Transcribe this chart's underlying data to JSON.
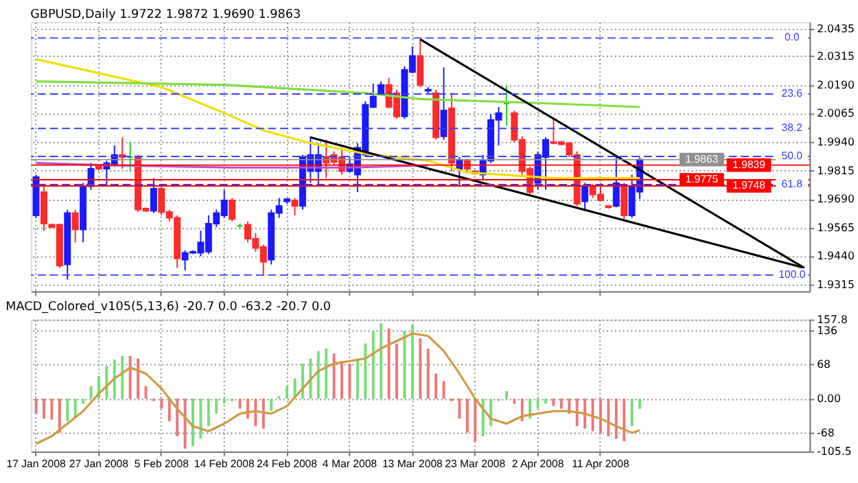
{
  "chart_data": [
    {
      "type": "candlestick",
      "title": "GBPUSD,Daily  1.9722 1.9872 1.9690 1.9863",
      "categories": [
        null,
        null,
        null,
        null,
        null,
        null,
        null,
        null,
        null,
        null,
        null,
        null,
        null,
        null,
        null,
        null,
        null,
        null,
        null,
        null,
        null,
        null,
        null,
        null,
        null,
        null,
        null,
        null,
        null,
        null,
        null,
        null,
        null,
        null,
        null,
        null,
        null,
        null,
        null,
        null,
        null,
        null,
        null,
        null,
        null,
        null,
        null,
        null,
        null,
        null,
        null,
        null,
        null,
        null,
        null,
        null,
        null,
        null,
        null,
        null,
        null,
        null,
        null,
        null,
        null,
        null,
        null,
        null,
        null,
        null,
        null,
        null,
        null,
        null,
        null,
        null,
        null,
        null,
        null,
        null,
        null,
        null,
        null,
        null,
        null,
        null,
        null,
        null,
        null,
        null,
        null,
        null,
        null,
        null,
        null,
        null,
        null,
        null,
        null
      ],
      "ohlc": [
        [
          1.9619,
          1.9797,
          1.9608,
          1.9787
        ],
        [
          1.9721,
          1.9746,
          1.9552,
          1.9583
        ],
        [
          1.9578,
          1.9583,
          1.9563,
          1.9568
        ],
        [
          1.9578,
          1.9583,
          1.9389,
          1.9399
        ],
        [
          1.9404,
          1.9644,
          1.9338,
          1.9629
        ],
        [
          1.9629,
          1.9644,
          1.9501,
          1.9557
        ],
        [
          1.9557,
          1.9761,
          1.9501,
          1.9746
        ],
        [
          1.9746,
          1.9848,
          1.9731,
          1.9823
        ],
        [
          1.9833,
          1.9838,
          1.9817,
          1.9823
        ],
        [
          1.9823,
          1.9858,
          1.9746,
          1.9848
        ],
        [
          1.9838,
          1.9925,
          1.9833,
          1.9884
        ],
        [
          1.9884,
          1.996,
          1.9823,
          1.9874
        ],
        [
          1.9874,
          1.994,
          1.9812,
          1.9874
        ],
        [
          1.9874,
          1.9884,
          1.9634,
          1.9644
        ],
        [
          1.9649,
          1.9654,
          1.9634,
          1.9639
        ],
        [
          1.9639,
          1.9782,
          1.9629,
          1.9736
        ],
        [
          1.9736,
          1.9756,
          1.9619,
          1.9634
        ],
        [
          1.9634,
          1.9644,
          1.9593,
          1.9608
        ],
        [
          1.9608,
          1.9619,
          1.9389,
          1.943
        ],
        [
          1.9425,
          1.9466,
          1.9379,
          1.9455
        ],
        [
          1.9455,
          1.9466,
          1.945,
          1.946
        ],
        [
          1.9455,
          1.9552,
          1.944,
          1.9501
        ],
        [
          1.946,
          1.9619,
          1.945,
          1.9583
        ],
        [
          1.9583,
          1.9644,
          1.9568,
          1.9629
        ],
        [
          1.9619,
          1.9731,
          1.9608,
          1.9685
        ],
        [
          1.9685,
          1.9695,
          1.9593,
          1.9603
        ],
        [
          1.9573,
          1.9583,
          1.9563,
          1.9573
        ],
        [
          1.9578,
          1.9593,
          1.9501,
          1.9517
        ],
        [
          1.9517,
          1.9542,
          1.946,
          1.9476
        ],
        [
          1.9481,
          1.9491,
          1.9358,
          1.9415
        ],
        [
          1.9425,
          1.9644,
          1.9404,
          1.9629
        ],
        [
          1.9629,
          1.9695,
          1.9608,
          1.966
        ],
        [
          1.968,
          1.9695,
          1.967,
          1.969
        ],
        [
          1.9685,
          1.9695,
          1.9619,
          1.966
        ],
        [
          1.966,
          1.9884,
          1.9644,
          1.9874
        ],
        [
          1.9812,
          1.9965,
          1.9761,
          1.9884
        ],
        [
          1.9812,
          1.9935,
          1.9756,
          1.9884
        ],
        [
          1.9874,
          1.995,
          1.9782,
          1.9848
        ],
        [
          1.9884,
          1.9899,
          1.9838,
          1.9853
        ],
        [
          1.9874,
          1.9915,
          1.9797,
          1.9812
        ],
        [
          1.9812,
          1.9874,
          1.9807,
          1.9843
        ],
        [
          1.9797,
          1.9935,
          1.9721,
          1.9915
        ],
        [
          1.9884,
          2.0118,
          1.9874,
          2.0103
        ],
        [
          2.0093,
          2.0195,
          2.0088,
          2.0139
        ],
        [
          2.0154,
          2.0205,
          2.0144,
          2.019
        ],
        [
          2.019,
          2.0221,
          2.0088,
          2.0093
        ],
        [
          2.0154,
          2.0169,
          2.0042,
          2.0052
        ],
        [
          2.0052,
          2.0271,
          2.0042,
          2.0256
        ],
        [
          2.0246,
          2.0358,
          2.0241,
          2.0317
        ],
        [
          2.0317,
          2.0389,
          2.018,
          2.019
        ],
        [
          2.0164,
          2.018,
          2.0154,
          2.0169
        ],
        [
          2.0154,
          2.0169,
          1.995,
          1.996
        ],
        [
          1.9965,
          2.0266,
          1.995,
          2.0078
        ],
        [
          2.0088,
          2.0154,
          1.9812,
          1.9848
        ],
        [
          1.9823,
          1.9874,
          1.9746,
          1.9863
        ],
        [
          1.9858,
          1.9868,
          1.9812,
          1.9823
        ],
        [
          1.9812,
          1.9817,
          1.9797,
          1.9802
        ],
        [
          1.9797,
          1.9884,
          1.9772,
          1.9858
        ],
        [
          1.9858,
          2.0062,
          1.9848,
          2.0037
        ],
        [
          2.0037,
          2.0093,
          1.9925,
          2.0067
        ],
        [
          2.0108,
          2.019,
          2.0011,
          2.0108
        ],
        [
          2.0067,
          2.0078,
          1.994,
          1.995
        ],
        [
          1.995,
          1.9965,
          1.9797,
          1.9812
        ],
        [
          1.9823,
          1.9833,
          1.971,
          1.9721
        ],
        [
          1.9761,
          1.9899,
          1.9731,
          1.9884
        ],
        [
          1.9874,
          1.996,
          1.9731,
          1.995
        ],
        [
          1.994,
          2.0042,
          1.993,
          1.9935
        ],
        [
          1.994,
          1.9945,
          1.9925,
          1.993
        ],
        [
          1.9935,
          1.994,
          1.9874,
          1.9884
        ],
        [
          1.9884,
          1.9899,
          1.966,
          1.967
        ],
        [
          1.968,
          1.9761,
          1.9644,
          1.9746
        ],
        [
          1.9746,
          1.9756,
          1.9695,
          1.971
        ],
        [
          1.971,
          1.9761,
          1.968,
          1.9685
        ],
        [
          1.966,
          1.9665,
          1.9649,
          1.9654
        ],
        [
          1.966,
          1.9874,
          1.9654,
          1.9761
        ],
        [
          1.9746,
          1.9761,
          1.9603,
          1.9619
        ],
        [
          1.9619,
          1.9797,
          1.9608,
          1.9746
        ],
        [
          1.9722,
          1.9872,
          1.969,
          1.9863
        ],
        null,
        null,
        null,
        null,
        null,
        null,
        null,
        null,
        null,
        null,
        null,
        null,
        null,
        null,
        null,
        null,
        null,
        null,
        null,
        null,
        null
      ],
      "colors": [
        "#1a1aff",
        "#ff2a2a",
        "#ff2a2a",
        "#ff2a2a",
        "#1a1aff",
        "#ff2a2a",
        "#1a1aff",
        "#1a1aff",
        "#ff2a2a",
        "#1a1aff",
        "#1a1aff",
        "#ff2a2a",
        "#22cc22",
        "#ff2a2a",
        "#ff2a2a",
        "#1a1aff",
        "#ff2a2a",
        "#ff2a2a",
        "#ff2a2a",
        "#1a1aff",
        "#1a1aff",
        "#1a1aff",
        "#1a1aff",
        "#1a1aff",
        "#1a1aff",
        "#ff2a2a",
        "#22cc22",
        "#ff2a2a",
        "#ff2a2a",
        "#ff2a2a",
        "#1a1aff",
        "#1a1aff",
        "#1a1aff",
        "#ff2a2a",
        "#1a1aff",
        "#1a1aff",
        "#1a1aff",
        "#ff2a2a",
        "#ff2a2a",
        "#ff2a2a",
        "#1a1aff",
        "#1a1aff",
        "#1a1aff",
        "#1a1aff",
        "#1a1aff",
        "#ff2a2a",
        "#ff2a2a",
        "#1a1aff",
        "#1a1aff",
        "#ff2a2a",
        "#1a1aff",
        "#ff2a2a",
        "#1a1aff",
        "#ff2a2a",
        "#1a1aff",
        "#ff2a2a",
        "#ff2a2a",
        "#1a1aff",
        "#1a1aff",
        "#1a1aff",
        "#22cc22",
        "#ff2a2a",
        "#ff2a2a",
        "#ff2a2a",
        "#1a1aff",
        "#1a1aff",
        "#ff2a2a",
        "#ff2a2a",
        "#ff2a2a",
        "#ff2a2a",
        "#1a1aff",
        "#ff2a2a",
        "#ff2a2a",
        "#ff2a2a",
        "#1a1aff",
        "#ff2a2a",
        "#1a1aff",
        "#1a1aff",
        null,
        null,
        null,
        null,
        null,
        null,
        null,
        null,
        null,
        null,
        null,
        null,
        null,
        null,
        null,
        null,
        null,
        null,
        null,
        null,
        null
      ],
      "series": [
        {
          "type": "line",
          "color": "#f0e000",
          "values": [
            2.0302,
            null,
            null,
            null,
            null,
            null,
            null,
            null,
            null,
            null,
            null,
            null,
            null,
            null,
            null,
            null,
            2.018,
            null,
            null,
            null,
            null,
            null,
            null,
            null,
            2.0067,
            null,
            null,
            null,
            null,
            1.9991,
            null,
            null,
            null,
            null,
            null,
            1.9935,
            null,
            null,
            null,
            null,
            null,
            null,
            1.9889,
            null,
            null,
            null,
            null,
            null,
            null,
            null,
            1.9858,
            null,
            null,
            null,
            null,
            1.9807,
            null,
            null,
            null,
            null,
            null,
            null,
            null,
            null,
            null,
            null,
            1.9782,
            null,
            null,
            null,
            null,
            null,
            null,
            null,
            null,
            null,
            null,
            1.9782,
            null,
            null,
            null,
            null,
            null,
            null,
            null,
            null,
            null,
            null,
            null,
            null,
            null,
            null,
            null,
            null,
            null,
            null,
            null,
            null,
            null
          ]
        },
        {
          "type": "line",
          "color": "#80e040",
          "values": [
            2.0205,
            null,
            null,
            null,
            null,
            null,
            null,
            null,
            null,
            null,
            null,
            null,
            null,
            null,
            null,
            null,
            null,
            null,
            null,
            null,
            null,
            null,
            null,
            null,
            2.019,
            null,
            null,
            null,
            null,
            null,
            null,
            null,
            null,
            null,
            null,
            null,
            null,
            null,
            null,
            null,
            null,
            null,
            2.0154,
            null,
            null,
            null,
            null,
            null,
            null,
            2.0128,
            null,
            null,
            null,
            null,
            null,
            null,
            null,
            null,
            null,
            null,
            null,
            null,
            null,
            null,
            null,
            null,
            2.0108,
            null,
            null,
            null,
            null,
            null,
            null,
            null,
            null,
            null,
            null,
            2.0093,
            null,
            null,
            null,
            null,
            null,
            null,
            null,
            null,
            null,
            null,
            null,
            null,
            null,
            null,
            null,
            null,
            null,
            null,
            null,
            null,
            null
          ]
        },
        {
          "type": "line",
          "color": "#c050c0",
          "values": [
            1.9848,
            null,
            null,
            null,
            null,
            null,
            null,
            null,
            null,
            null,
            1.9838,
            null,
            null,
            null,
            null,
            null,
            null,
            null,
            null,
            null,
            null,
            null,
            null,
            null,
            null,
            1.9828,
            null,
            null,
            null,
            null,
            null,
            null,
            null,
            null,
            null,
            null,
            null,
            null,
            null,
            null,
            1.9828,
            null,
            null,
            null,
            null,
            null,
            null,
            null,
            null,
            null,
            1.9838,
            null,
            null,
            null,
            null,
            null,
            null,
            null,
            null,
            null,
            null,
            null,
            null,
            null,
            null,
            null,
            null,
            null,
            null,
            null,
            null,
            null,
            null,
            null,
            null,
            null,
            null,
            null,
            null,
            null,
            null,
            null,
            null,
            null,
            null,
            null,
            null,
            null,
            null,
            null,
            null,
            null,
            null,
            null,
            null,
            null,
            null,
            null,
            null
          ]
        },
        {
          "type": "line",
          "color": "#000000",
          "values": [
            null,
            null,
            null,
            null,
            null,
            null,
            null,
            null,
            null,
            null,
            null,
            null,
            null,
            null,
            null,
            null,
            null,
            null,
            null,
            null,
            null,
            null,
            null,
            null,
            null,
            null,
            null,
            null,
            null,
            null,
            null,
            null,
            null,
            null,
            null,
            null,
            null,
            null,
            null,
            null,
            null,
            null,
            null,
            null,
            null,
            null,
            null,
            null,
            null,
            2.0389,
            null,
            null,
            null,
            null,
            null,
            null,
            null,
            null,
            null,
            null,
            null,
            null,
            null,
            null,
            null,
            null,
            null,
            null,
            null,
            null,
            null,
            null,
            null,
            null,
            null,
            null,
            null,
            null,
            null,
            null,
            null,
            null,
            null,
            null,
            null,
            null,
            null,
            null,
            null,
            null,
            null,
            null,
            null,
            null,
            null,
            null,
            null,
            null,
            1.9389
          ]
        },
        {
          "type": "line",
          "color": "#000000",
          "values": [
            null,
            null,
            null,
            null,
            null,
            null,
            null,
            null,
            null,
            null,
            null,
            null,
            null,
            null,
            null,
            null,
            null,
            null,
            null,
            null,
            null,
            null,
            null,
            null,
            null,
            null,
            null,
            null,
            null,
            null,
            null,
            null,
            null,
            null,
            null,
            1.996,
            null,
            null,
            null,
            null,
            null,
            null,
            null,
            null,
            null,
            null,
            null,
            null,
            null,
            null,
            null,
            null,
            null,
            null,
            null,
            null,
            null,
            null,
            null,
            null,
            null,
            null,
            null,
            null,
            null,
            null,
            null,
            null,
            null,
            null,
            null,
            null,
            null,
            null,
            null,
            null,
            null,
            null,
            null,
            null,
            null,
            null,
            null,
            null,
            null,
            null,
            null,
            null,
            null,
            null,
            null,
            null,
            null,
            null,
            null,
            null,
            null,
            null,
            1.9389
          ]
        }
      ],
      "ylim": [
        1.9287,
        2.0465
      ],
      "yticks": [
        2.0435,
        2.0315,
        {
          "value": 2.019,
          "label": "2.0190"
        },
        2.0065,
        {
          "value": 1.994,
          "label": "1.9940"
        },
        1.9815,
        {
          "value": 1.969,
          "label": "1.9690"
        },
        1.9565,
        {
          "value": 1.944,
          "label": "1.9440"
        },
        1.9315
      ],
      "ref_lines": [
        {
          "axis": "y",
          "value": 2.0395,
          "color": "#3a3aff",
          "line_style": "dashed"
        },
        {
          "axis": "y",
          "value": 2.015,
          "color": "#3a3aff",
          "line_style": "dashed"
        },
        {
          "axis": "y",
          "value": 1.9999,
          "color": "#3a3aff",
          "line_style": "dashed"
        },
        {
          "axis": "y",
          "value": 1.9877,
          "color": "#3a3aff",
          "line_style": "dashed"
        },
        {
          "axis": "y",
          "value": 1.9754,
          "color": "#3a3aff",
          "line_style": "dashed"
        },
        {
          "axis": "y",
          "value": 1.9358,
          "color": "#3a3aff",
          "line_style": "dashed"
        },
        {
          "axis": "y",
          "value": 1.9863,
          "label": "1.9863",
          "color": "#909090",
          "line_style": "solid"
        },
        {
          "axis": "y",
          "value": 1.9839,
          "label": "1.9839",
          "color": "#ff0000",
          "line_style": "solid"
        },
        {
          "axis": "y",
          "value": 1.9775,
          "label": "1.9775",
          "color": "#ff0000",
          "line_style": "solid"
        },
        {
          "axis": "y",
          "value": 1.9748,
          "label": "1.9748",
          "color": "#ff0000",
          "line_style": "solid"
        }
      ],
      "annotations": [
        {
          "text": "0.0",
          "y": 2.0395
        },
        {
          "text": "23.6",
          "y": 2.015
        },
        {
          "text": "38.2",
          "y": 1.9999
        },
        {
          "text": "50.0",
          "y": 1.9877
        },
        {
          "text": "61.8",
          "y": 1.9754
        },
        {
          "text": "100.0",
          "y": 1.9358
        }
      ],
      "grid": true,
      "tick_labels": "y"
    },
    {
      "type": "bar",
      "title": "MACD_Colored_v105(5,13,6) -20.7 0.0 -63.2 -20.7 0.0",
      "categories": [
        "17 Jan 2008",
        null,
        null,
        null,
        null,
        null,
        null,
        null,
        "27 Jan 2008",
        null,
        null,
        null,
        null,
        null,
        null,
        null,
        "5 Feb 2008",
        null,
        null,
        null,
        null,
        null,
        null,
        null,
        "14 Feb 2008",
        null,
        null,
        null,
        null,
        null,
        null,
        null,
        "24 Feb 2008",
        null,
        null,
        null,
        null,
        null,
        null,
        null,
        "4 Mar 2008",
        null,
        null,
        null,
        null,
        null,
        null,
        null,
        "13 Mar 2008",
        null,
        null,
        null,
        null,
        null,
        null,
        null,
        "23 Mar 2008",
        null,
        null,
        null,
        null,
        null,
        null,
        null,
        "2 Apr 2008",
        null,
        null,
        null,
        null,
        null,
        null,
        null,
        "11 Apr 2008",
        null,
        null,
        null,
        null,
        null,
        null,
        null,
        null,
        null,
        null,
        null,
        null,
        null,
        null,
        null,
        null,
        null,
        null,
        null,
        null,
        null,
        null,
        null,
        null,
        null,
        null
      ],
      "series": [
        {
          "type": "bar",
          "values": [
            -30,
            -40,
            -42,
            -68,
            -45,
            -38,
            -10,
            25,
            45,
            65,
            78,
            85,
            85,
            80,
            25,
            -5,
            -20,
            -45,
            -75,
            -100,
            -95,
            -80,
            -55,
            -30,
            -10,
            -5,
            -20,
            -40,
            -55,
            -60,
            -25,
            5,
            25,
            40,
            70,
            80,
            95,
            100,
            90,
            75,
            70,
            80,
            110,
            135,
            150,
            140,
            110,
            135,
            148,
            120,
            100,
            50,
            35,
            -5,
            -40,
            -68,
            -85,
            -75,
            -55,
            -5,
            15,
            -10,
            -45,
            -40,
            -20,
            -10,
            -15,
            -20,
            -30,
            -55,
            -60,
            -65,
            -70,
            -75,
            -80,
            -85,
            -55,
            -20.7,
            null,
            null,
            null,
            null,
            null,
            null,
            null,
            null,
            null,
            null,
            null,
            null,
            null,
            null,
            null,
            null,
            null,
            null,
            null,
            null,
            null
          ],
          "colors": [
            "#ee7777",
            "#ee7777",
            "#ee7777",
            "#ee7777",
            "#77dd77",
            "#77dd77",
            "#77dd77",
            "#77dd77",
            "#77dd77",
            "#77dd77",
            "#77dd77",
            "#77dd77",
            "#ee7777",
            "#ee7777",
            "#ee7777",
            "#ee7777",
            "#ee7777",
            "#ee7777",
            "#ee7777",
            "#ee7777",
            "#77dd77",
            "#77dd77",
            "#77dd77",
            "#77dd77",
            "#77dd77",
            "#77dd77",
            "#ee7777",
            "#ee7777",
            "#ee7777",
            "#ee7777",
            "#77dd77",
            "#77dd77",
            "#77dd77",
            "#77dd77",
            "#77dd77",
            "#77dd77",
            "#77dd77",
            "#77dd77",
            "#ee7777",
            "#ee7777",
            "#ee7777",
            "#77dd77",
            "#77dd77",
            "#77dd77",
            "#77dd77",
            "#ee7777",
            "#ee7777",
            "#77dd77",
            "#77dd77",
            "#ee7777",
            "#ee7777",
            "#ee7777",
            "#ee7777",
            "#ee7777",
            "#ee7777",
            "#ee7777",
            "#ee7777",
            "#77dd77",
            "#77dd77",
            "#77dd77",
            "#77dd77",
            "#ee7777",
            "#ee7777",
            "#77dd77",
            "#77dd77",
            "#77dd77",
            "#ee7777",
            "#ee7777",
            "#ee7777",
            "#ee7777",
            "#ee7777",
            "#ee7777",
            "#ee7777",
            "#ee7777",
            "#ee7777",
            "#ee7777",
            "#77dd77",
            "#77dd77",
            null,
            null,
            null,
            null,
            null,
            null,
            null,
            null,
            null,
            null,
            null,
            null,
            null,
            null,
            null,
            null,
            null,
            null,
            null,
            null,
            null
          ]
        },
        {
          "type": "line",
          "color": "#d09a40",
          "values": [
            -90,
            null,
            -75,
            null,
            -50,
            null,
            -25,
            null,
            10,
            null,
            40,
            null,
            62,
            null,
            50,
            null,
            20,
            null,
            -20,
            null,
            -55,
            null,
            -65,
            null,
            -50,
            null,
            -30,
            null,
            -25,
            null,
            -30,
            null,
            -15,
            null,
            20,
            null,
            55,
            null,
            70,
            null,
            75,
            null,
            80,
            null,
            100,
            null,
            115,
            null,
            130,
            null,
            125,
            null,
            95,
            null,
            50,
            null,
            0,
            null,
            -40,
            null,
            -50,
            null,
            -35,
            null,
            -30,
            null,
            -25,
            null,
            -25,
            null,
            -30,
            null,
            -40,
            null,
            -55,
            null,
            -68,
            -63.2,
            null,
            null,
            null,
            null,
            null,
            null,
            null,
            null,
            null,
            null,
            null,
            null,
            null,
            null,
            null,
            null,
            null,
            null,
            null,
            null,
            null
          ]
        }
      ],
      "ylim": [
        -105.5,
        157.8
      ],
      "yticks": [
        157.8,
        136,
        68,
        {
          "value": 0,
          "label": "0.00"
        },
        -68,
        -105.5
      ],
      "grid": true
    }
  ]
}
